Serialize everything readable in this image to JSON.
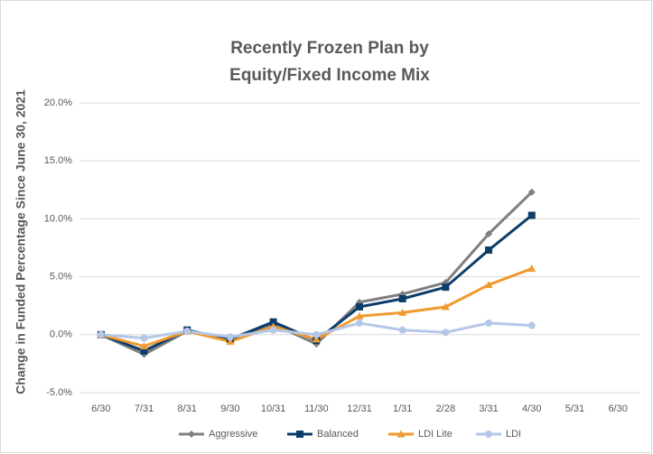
{
  "chart_data": {
    "type": "line",
    "title": [
      "Recently Frozen Plan by",
      "Equity/Fixed Income Mix"
    ],
    "y_label": "Change in Funded Percentage Since June 30, 2021",
    "categories": [
      "6/30",
      "7/31",
      "8/31",
      "9/30",
      "10/31",
      "11/30",
      "12/31",
      "1/31",
      "2/28",
      "3/31",
      "4/30",
      "5/31",
      "6/30"
    ],
    "series": [
      {
        "name": "Aggressive",
        "color": "#7f7f7f",
        "marker": "diamond",
        "values": [
          0,
          -1.7,
          0.3,
          -0.5,
          0.9,
          -0.8,
          2.8,
          3.5,
          4.5,
          8.7,
          12.3,
          null,
          null
        ]
      },
      {
        "name": "Balanced",
        "color": "#0d3d6b",
        "marker": "square",
        "values": [
          0,
          -1.4,
          0.4,
          -0.4,
          1.1,
          -0.5,
          2.4,
          3.1,
          4.1,
          7.3,
          10.3,
          null,
          null
        ]
      },
      {
        "name": "LDI Lite",
        "color": "#f09a2e",
        "marker": "triangle",
        "values": [
          0,
          -1.0,
          0.3,
          -0.6,
          0.7,
          -0.4,
          1.6,
          1.9,
          2.4,
          4.3,
          5.7,
          null,
          null
        ]
      },
      {
        "name": "LDI",
        "color": "#b4c7e7",
        "marker": "circle",
        "values": [
          0,
          -0.3,
          0.3,
          -0.2,
          0.4,
          0.0,
          1.0,
          0.4,
          0.2,
          1.0,
          0.8,
          null,
          null
        ]
      }
    ],
    "ylim": [
      -5,
      20
    ],
    "yticks": [
      {
        "value": -5,
        "label": "-5.0%"
      },
      {
        "value": 0,
        "label": "0.0%"
      },
      {
        "value": 5,
        "label": "5.0%"
      },
      {
        "value": 10,
        "label": "10.0%"
      },
      {
        "value": 15,
        "label": "15.0%"
      },
      {
        "value": 20,
        "label": "20.0%"
      }
    ],
    "grid": true,
    "legend": "bottom"
  }
}
